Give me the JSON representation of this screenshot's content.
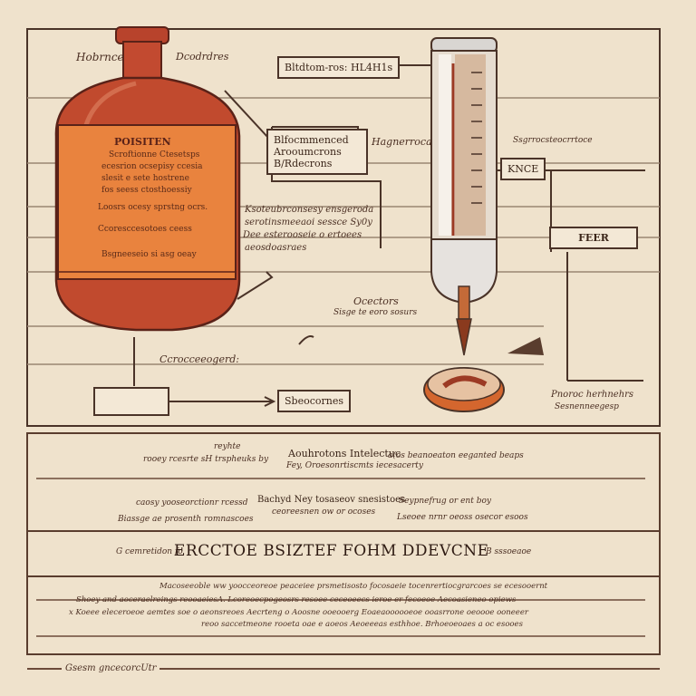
{
  "bottle": {
    "label_left": "Hobrnce",
    "label_right": "Dcodrdres",
    "title": "POISITEN",
    "lines": [
      "Scroftionne Ctesetsps",
      "ecesrion ocsepisy ccesia",
      "slesit e sete hostrene",
      "fos seess ctosthoessiy"
    ],
    "bullets": [
      "Loosrs ocesy sprstng ocrs.",
      "Ccoresccesotoes ceess",
      "Bsgneeseio si asg oeay"
    ]
  },
  "callouts": {
    "top_box": "Bltdtom-ros: HL4H1s",
    "mid_box_lines": [
      "Blfocmmenced",
      "Arooumcrons",
      "B/Rdecrons"
    ],
    "mid_right": "Hagnerroca",
    "far_right": "Ssgrrocsteocrrtoce",
    "kncs_box": "KNCE",
    "fer_box": "FEER",
    "notes_lines": [
      "Ksoteubrconsesy ensgeroda",
      "serotinsmeeaoi sessce Sy0y",
      "Dee esterooseie o ertoees",
      "aeosdoasraes"
    ],
    "ocs_title": "Ocectors",
    "ocs_sub": "Sisge te eoro sosurs",
    "left_note": "Ccrocceeogerd:",
    "scoc_box": "Sbeocornes",
    "right_note_1": "Pnoroc herhnehrs",
    "right_note_2": "Sesnenneegesp"
  },
  "panel": {
    "row1_small": "reyhte",
    "row1_left": "rooey rcesrte sH trspheuks by",
    "row1_mid": "Aouhrotons Intelectuc",
    "row1_mid2": "Fey, Oroesonrtiscmts iecesacerty",
    "row1_right": "a(os beanoeaton eeganted beaps",
    "row2_left1": "caosy yooseorctionr rcessd",
    "row2_left2": "Biassge ae prosenth romnascoes",
    "row2_mid": "Bachyd Ney tosaseov snesistoes",
    "row2_mid2": "ceoreesnen ow or ocoses",
    "row2_right1": "Seypnefrug or ent boy",
    "row2_right2": "Lseoee nrnr oeoss osecor esoos",
    "headline_pre": "G cemretidon fo",
    "headline": "ERCCTOE BSIZTEF FOHM DDEVCNE",
    "headline_post": "B sssoeaoe",
    "body_lines": [
      "Macoseeoble ww yoocceoreoe peaceiee prsmetisosto focosaeie tocenrertiocgrarcoes se ecesooernt",
      "Shoey and aoceraelreings reooaeiesA. Lcoreoecpogeosrs resoee ceceoeecs ieroe er fecoeoe Aecoasieneo opiews",
      "x Koeee eleceroeoe aemtes soe o aeonsreoes Aecrteng o Aoosne ooeooerg  Eoaeaoooooeoe ooasrrone oeoooe ooneeer",
      "reoo saccetmeone rooeta oae e aoeos Aeoeeeas esthhoe. Brhoeoeoaes a oc esooes"
    ]
  },
  "footer": "Gsesm gncecorcUtr"
}
